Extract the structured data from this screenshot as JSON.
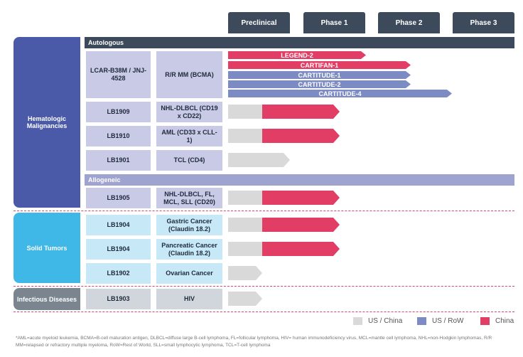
{
  "phases": [
    "Preclinical",
    "Phase 1",
    "Phase 2",
    "Phase 3"
  ],
  "categories": {
    "heme": "Hematologic Malignancies",
    "solid": "Solid Tumors",
    "infect": "Infectious Diseases"
  },
  "sections": {
    "auto": "Autologous",
    "allo": "Allogeneic"
  },
  "rows": [
    {
      "id": "LCAR-B38M / JNJ-4528",
      "indication": "R/R MM (BCMA)"
    },
    {
      "id": "LB1909",
      "indication": "NHL-DLBCL (CD19 x CD22)",
      "progress": "Phase 1"
    },
    {
      "id": "LB1910",
      "indication": "AML (CD33 x CLL-1)",
      "progress": "Phase 1"
    },
    {
      "id": "LB1901",
      "indication": "TCL (CD4)",
      "progress": "Preclinical"
    },
    {
      "id": "LB1905",
      "indication": "NHL-DLBCL, FL, MCL, SLL (CD20)",
      "progress": "Phase 1"
    },
    {
      "id": "LB1904",
      "indication": "Gastric Cancer (Claudin 18.2)",
      "progress": "Phase 1"
    },
    {
      "id": "LB1904",
      "indication": "Pancreatic Cancer (Claudin 18.2)",
      "progress": "Phase 1"
    },
    {
      "id": "LB1902",
      "indication": "Ovarian Cancer",
      "progress": "Preclinical"
    },
    {
      "id": "LB1903",
      "indication": "HIV",
      "progress": "Preclinical"
    }
  ],
  "trials": [
    {
      "name": "LEGEND-2",
      "region": "China",
      "phase": "Phase 1"
    },
    {
      "name": "CARTIFAN-1",
      "region": "China",
      "phase": "Phase 2"
    },
    {
      "name": "CARTITUDE-1",
      "region": "US / RoW",
      "phase": "Phase 2"
    },
    {
      "name": "CARTITUDE-2",
      "region": "US / RoW",
      "phase": "Phase 2"
    },
    {
      "name": "CARTITUDE-4",
      "region": "US / RoW",
      "phase": "Phase 3"
    }
  ],
  "legend": [
    {
      "label": "US / China",
      "color": "#d9d9d9"
    },
    {
      "label": "US / RoW",
      "color": "#7d8bc4"
    },
    {
      "label": "China",
      "color": "#e23d64"
    }
  ],
  "footnote": "*AML=acute myeloid leukemia, BCMA=B-cell maturation antigen, DLBCL=diffuse large B-cell lymphoma, FL=follicular lymphoma, HIV= human immunodeficiency virus, MCL=mantle cell lymphoma, NHL=non-Hodgkin lymphomas, R/R MM=relapsed or refractory multiple myeloma, RoW=Rest of World, SLL=small lymphocytic lymphoma, TCL=T-cell lymphoma"
}
